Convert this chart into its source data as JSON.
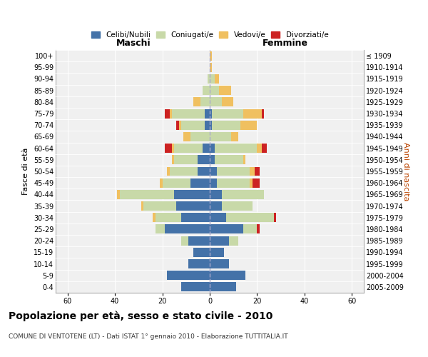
{
  "age_groups": [
    "0-4",
    "5-9",
    "10-14",
    "15-19",
    "20-24",
    "25-29",
    "30-34",
    "35-39",
    "40-44",
    "45-49",
    "50-54",
    "55-59",
    "60-64",
    "65-69",
    "70-74",
    "75-79",
    "80-84",
    "85-89",
    "90-94",
    "95-99",
    "100+"
  ],
  "birth_years": [
    "2005-2009",
    "2000-2004",
    "1995-1999",
    "1990-1994",
    "1985-1989",
    "1980-1984",
    "1975-1979",
    "1970-1974",
    "1965-1969",
    "1960-1964",
    "1955-1959",
    "1950-1954",
    "1945-1949",
    "1940-1944",
    "1935-1939",
    "1930-1934",
    "1925-1929",
    "1920-1924",
    "1915-1919",
    "1910-1914",
    "≤ 1909"
  ],
  "male": {
    "celibi": [
      12,
      18,
      9,
      7,
      9,
      19,
      12,
      14,
      15,
      8,
      5,
      5,
      3,
      0,
      2,
      2,
      0,
      0,
      0,
      0,
      0
    ],
    "coniugati": [
      0,
      0,
      0,
      0,
      3,
      4,
      11,
      14,
      23,
      12,
      12,
      10,
      12,
      8,
      10,
      14,
      4,
      3,
      1,
      0,
      0
    ],
    "vedovi": [
      0,
      0,
      0,
      0,
      0,
      0,
      1,
      1,
      1,
      1,
      1,
      1,
      1,
      3,
      1,
      1,
      3,
      0,
      0,
      0,
      0
    ],
    "divorziati": [
      0,
      0,
      0,
      0,
      0,
      0,
      0,
      0,
      0,
      0,
      0,
      0,
      3,
      0,
      1,
      2,
      0,
      0,
      0,
      0,
      0
    ]
  },
  "female": {
    "nubili": [
      11,
      15,
      8,
      6,
      8,
      14,
      7,
      5,
      5,
      3,
      3,
      2,
      2,
      0,
      1,
      1,
      0,
      0,
      0,
      0,
      0
    ],
    "coniugate": [
      0,
      0,
      0,
      0,
      4,
      6,
      20,
      13,
      18,
      14,
      14,
      12,
      18,
      9,
      12,
      13,
      5,
      4,
      2,
      0,
      0
    ],
    "vedove": [
      0,
      0,
      0,
      0,
      0,
      0,
      0,
      0,
      0,
      1,
      2,
      1,
      2,
      3,
      7,
      8,
      5,
      5,
      2,
      1,
      1
    ],
    "divorziate": [
      0,
      0,
      0,
      0,
      0,
      1,
      1,
      0,
      0,
      3,
      2,
      0,
      2,
      0,
      0,
      1,
      0,
      0,
      0,
      0,
      0
    ]
  },
  "colors": {
    "celibi": "#4472a8",
    "coniugati": "#c8d9a8",
    "vedovi": "#f0c060",
    "divorziati": "#cc2222"
  },
  "title": "Popolazione per età, sesso e stato civile - 2010",
  "subtitle": "COMUNE DI VENTOTENE (LT) - Dati ISTAT 1° gennaio 2010 - Elaborazione TUTTITALIA.IT",
  "xlabel_left": "Maschi",
  "xlabel_right": "Femmine",
  "ylabel_left": "Fasce di età",
  "ylabel_right": "Anni di nascita",
  "xlim": 65,
  "legend_labels": [
    "Celibi/Nubili",
    "Coniugati/e",
    "Vedovi/e",
    "Divorziati/e"
  ],
  "background_color": "#ffffff",
  "plot_bg_color": "#f0f0f0",
  "grid_color": "#ffffff"
}
